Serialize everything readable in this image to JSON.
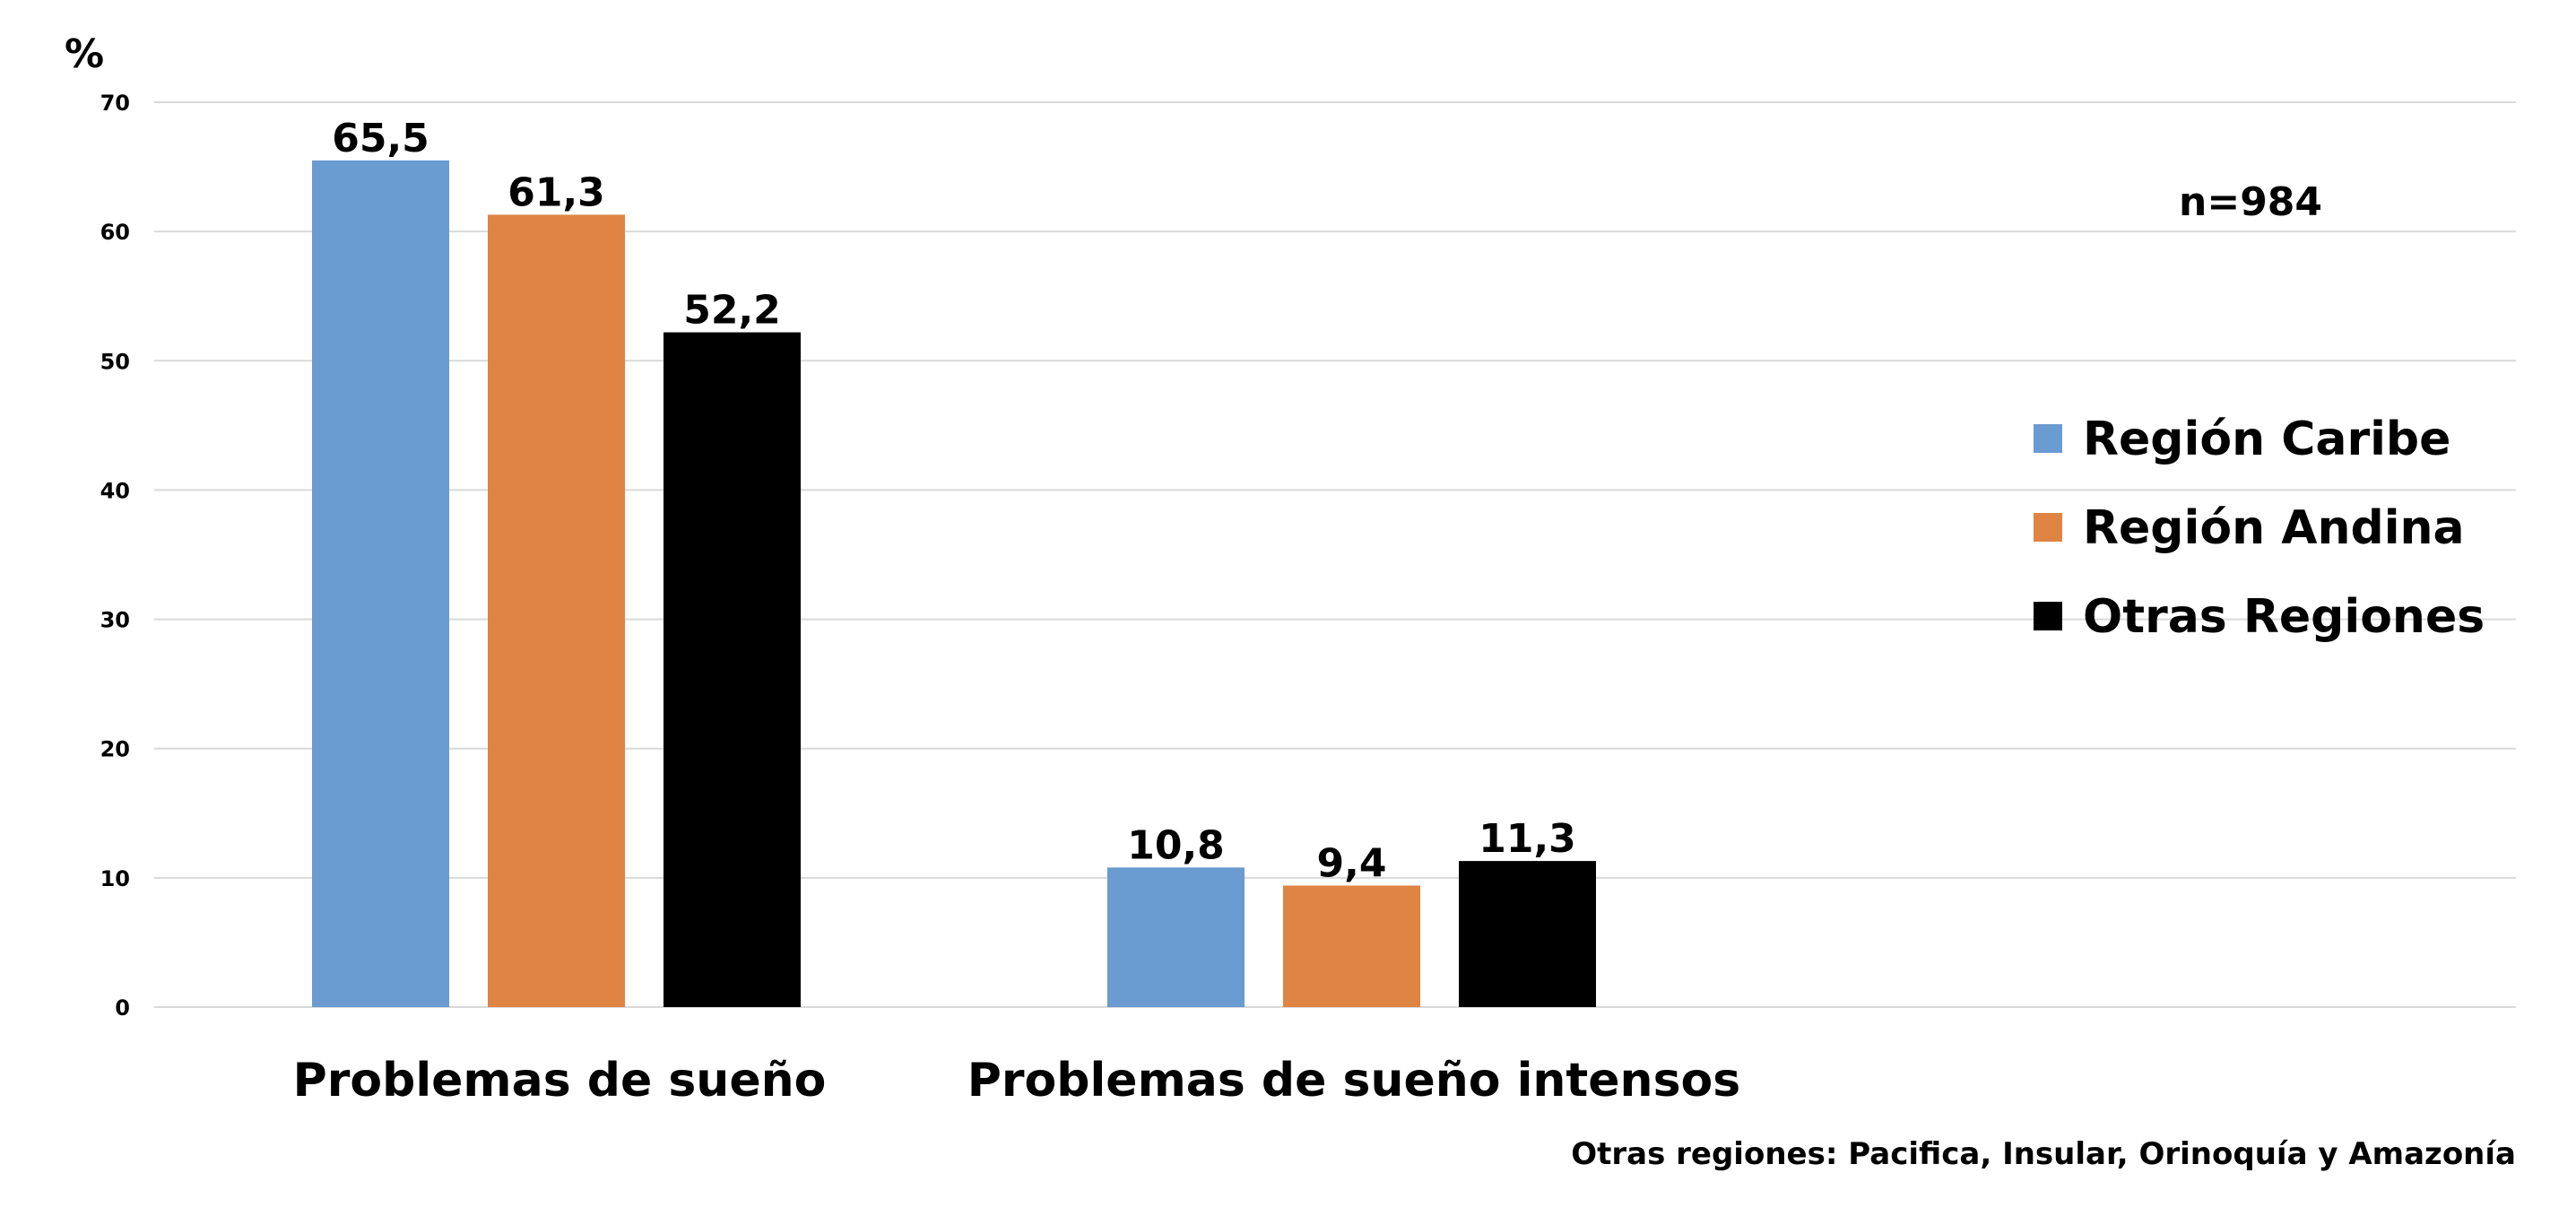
{
  "chart_data": {
    "type": "bar",
    "title": "",
    "ylabel": "%",
    "xlabel": "",
    "ylim": [
      0,
      70
    ],
    "yticks": [
      0,
      10,
      20,
      30,
      40,
      50,
      60,
      70
    ],
    "grid": true,
    "legend_position": "right",
    "categories": [
      "Problemas de sueño",
      "Problemas de sueño intensos"
    ],
    "series": [
      {
        "name": "Región Caribe",
        "color": "#6A9BD1",
        "values": [
          65.5,
          10.8
        ],
        "labels": [
          "65,5",
          "10,8"
        ]
      },
      {
        "name": "Región Andina",
        "color": "#E08444",
        "values": [
          61.3,
          9.4
        ],
        "labels": [
          "61,3",
          "9,4"
        ]
      },
      {
        "name": "Otras Regiones",
        "color": "#000000",
        "values": [
          52.2,
          11.3
        ],
        "labels": [
          "52,2",
          "11,3"
        ]
      }
    ],
    "annotations": {
      "sample_size": "n=984",
      "footnote": "Otras regiones: Pacifica, Insular, Orinoquía y Amazonía"
    }
  }
}
